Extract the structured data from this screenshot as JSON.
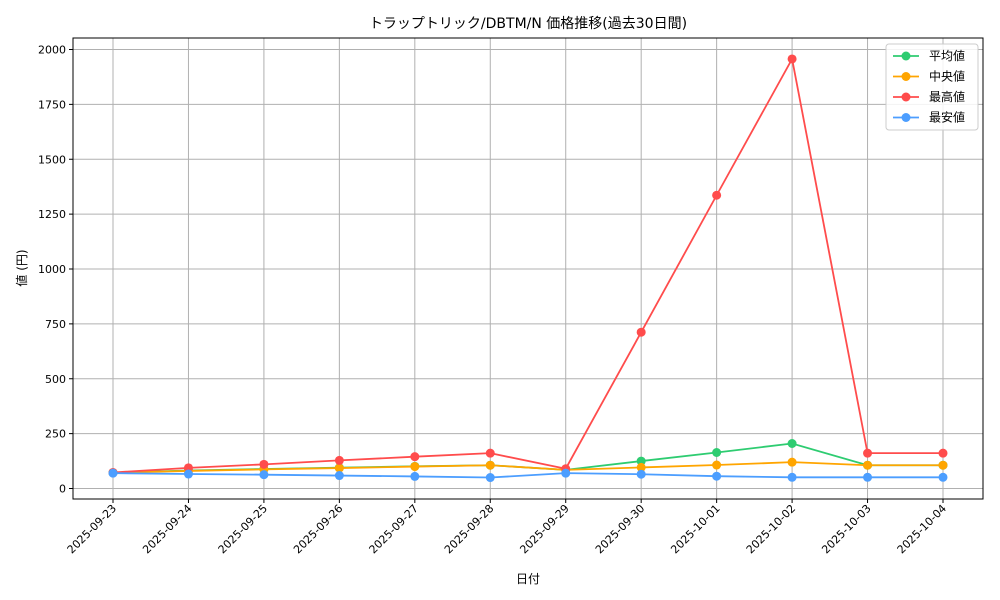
{
  "chart_data": {
    "type": "line",
    "title": "トラップトリック/DBTM/N 価格推移(過去30日間)",
    "xlabel": "日付",
    "ylabel": "値 (円)",
    "ylim": [
      -50,
      2050
    ],
    "yticks": [
      0,
      250,
      500,
      750,
      1000,
      1250,
      1500,
      1750,
      2000
    ],
    "grid": true,
    "legend_position": "top-right",
    "categories": [
      "2025-09-23",
      "2025-09-24",
      "2025-09-25",
      "2025-09-26",
      "2025-09-27",
      "2025-09-28",
      "2025-09-29",
      "2025-09-30",
      "2025-10-01",
      "2025-10-02",
      "2025-10-03",
      "2025-10-04"
    ],
    "series": [
      {
        "name": "平均値",
        "color": "#2ecc71",
        "values": [
          72,
          82,
          89,
          95,
          101,
          106,
          85,
          125,
          164,
          205,
          106,
          106
        ]
      },
      {
        "name": "中央値",
        "color": "#ffa500",
        "values": [
          72,
          80,
          87,
          93,
          100,
          106,
          85,
          96,
          107,
          120,
          106,
          106
        ]
      },
      {
        "name": "最高値",
        "color": "#ff4c4c",
        "values": [
          73,
          94,
          110,
          128,
          145,
          161,
          90,
          712,
          1336,
          1957,
          161,
          161
        ]
      },
      {
        "name": "最安値",
        "color": "#4c9eff",
        "values": [
          70,
          66,
          63,
          59,
          55,
          50,
          70,
          65,
          56,
          51,
          51,
          51
        ]
      }
    ]
  }
}
